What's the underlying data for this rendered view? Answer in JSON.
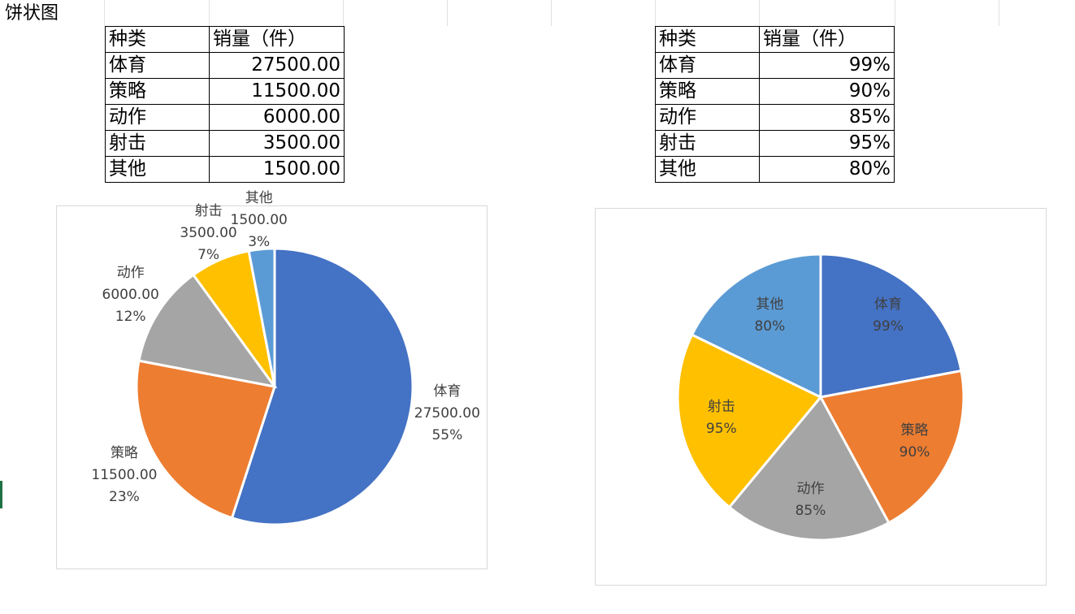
{
  "sheet_title": "饼状图",
  "table1": {
    "header": [
      "种类",
      "销量（件）"
    ],
    "rows": [
      [
        "体育",
        "27500.00"
      ],
      [
        "策略",
        "11500.00"
      ],
      [
        "动作",
        "6000.00"
      ],
      [
        "射击",
        "3500.00"
      ],
      [
        "其他",
        "1500.00"
      ]
    ]
  },
  "table2": {
    "header": [
      "种类",
      "销量（件）"
    ],
    "rows": [
      [
        "体育",
        "99%"
      ],
      [
        "策略",
        "90%"
      ],
      [
        "动作",
        "85%"
      ],
      [
        "射击",
        "95%"
      ],
      [
        "其他",
        "80%"
      ]
    ]
  },
  "chart_data": [
    {
      "type": "pie",
      "categories": [
        "体育",
        "策略",
        "动作",
        "射击",
        "其他"
      ],
      "values": [
        27500,
        11500,
        6000,
        3500,
        1500
      ],
      "value_labels": [
        "27500.00",
        "11500.00",
        "6000.00",
        "3500.00",
        "1500.00"
      ],
      "percent_labels": [
        "55%",
        "23%",
        "12%",
        "7%",
        "3%"
      ],
      "colors": [
        "#4472c4",
        "#ed7d31",
        "#a5a5a5",
        "#ffc000",
        "#5b9bd5"
      ],
      "start_angle_deg": 0,
      "direction": "clockwise",
      "title": ""
    },
    {
      "type": "pie",
      "categories": [
        "体育",
        "策略",
        "动作",
        "射击",
        "其他"
      ],
      "values": [
        0.99,
        0.9,
        0.85,
        0.95,
        0.8
      ],
      "value_labels": [
        "99%",
        "90%",
        "85%",
        "95%",
        "80%"
      ],
      "colors": [
        "#4472c4",
        "#ed7d31",
        "#a5a5a5",
        "#ffc000",
        "#5b9bd5"
      ],
      "start_angle_deg": 0,
      "direction": "clockwise",
      "title": ""
    }
  ]
}
